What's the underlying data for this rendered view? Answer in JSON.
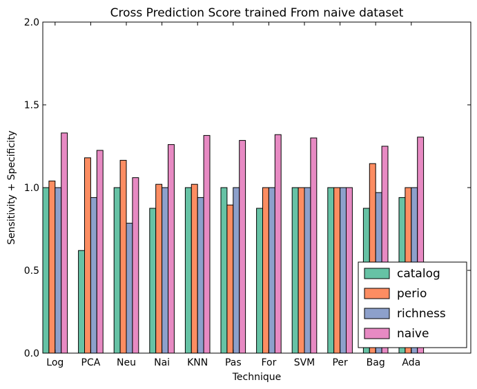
{
  "chart_data": {
    "type": "bar",
    "title": "Cross Prediction Score trained From naive dataset",
    "xlabel": "Technique",
    "ylabel": "Sensitivity + Specificity",
    "ylim": [
      0,
      2.0
    ],
    "yticks": [
      "0.0",
      "0.5",
      "1.0",
      "1.5",
      "2.0"
    ],
    "categories": [
      "Log",
      "PCA",
      "Neu",
      "Nai",
      "KNN",
      "Pas",
      "For",
      "SVM",
      "Per",
      "Bag",
      "Ada"
    ],
    "series": [
      {
        "name": "catalog",
        "color": "#66c2a5",
        "values": [
          1.0,
          0.62,
          1.0,
          0.875,
          1.0,
          1.0,
          0.875,
          1.0,
          1.0,
          0.875,
          0.94
        ]
      },
      {
        "name": "perio",
        "color": "#fc8d62",
        "values": [
          1.04,
          1.18,
          1.165,
          1.02,
          1.02,
          0.895,
          1.0,
          1.0,
          1.0,
          1.145,
          1.0
        ]
      },
      {
        "name": "richness",
        "color": "#8da0cb",
        "values": [
          1.0,
          0.94,
          0.785,
          1.0,
          0.94,
          1.0,
          1.0,
          1.0,
          1.0,
          0.97,
          1.0
        ]
      },
      {
        "name": "naive",
        "color": "#e78ac3",
        "values": [
          1.33,
          1.225,
          1.06,
          1.26,
          1.315,
          1.285,
          1.32,
          1.3,
          1.0,
          1.25,
          1.305
        ]
      }
    ],
    "grid": false,
    "legend_position": "lower-right"
  }
}
